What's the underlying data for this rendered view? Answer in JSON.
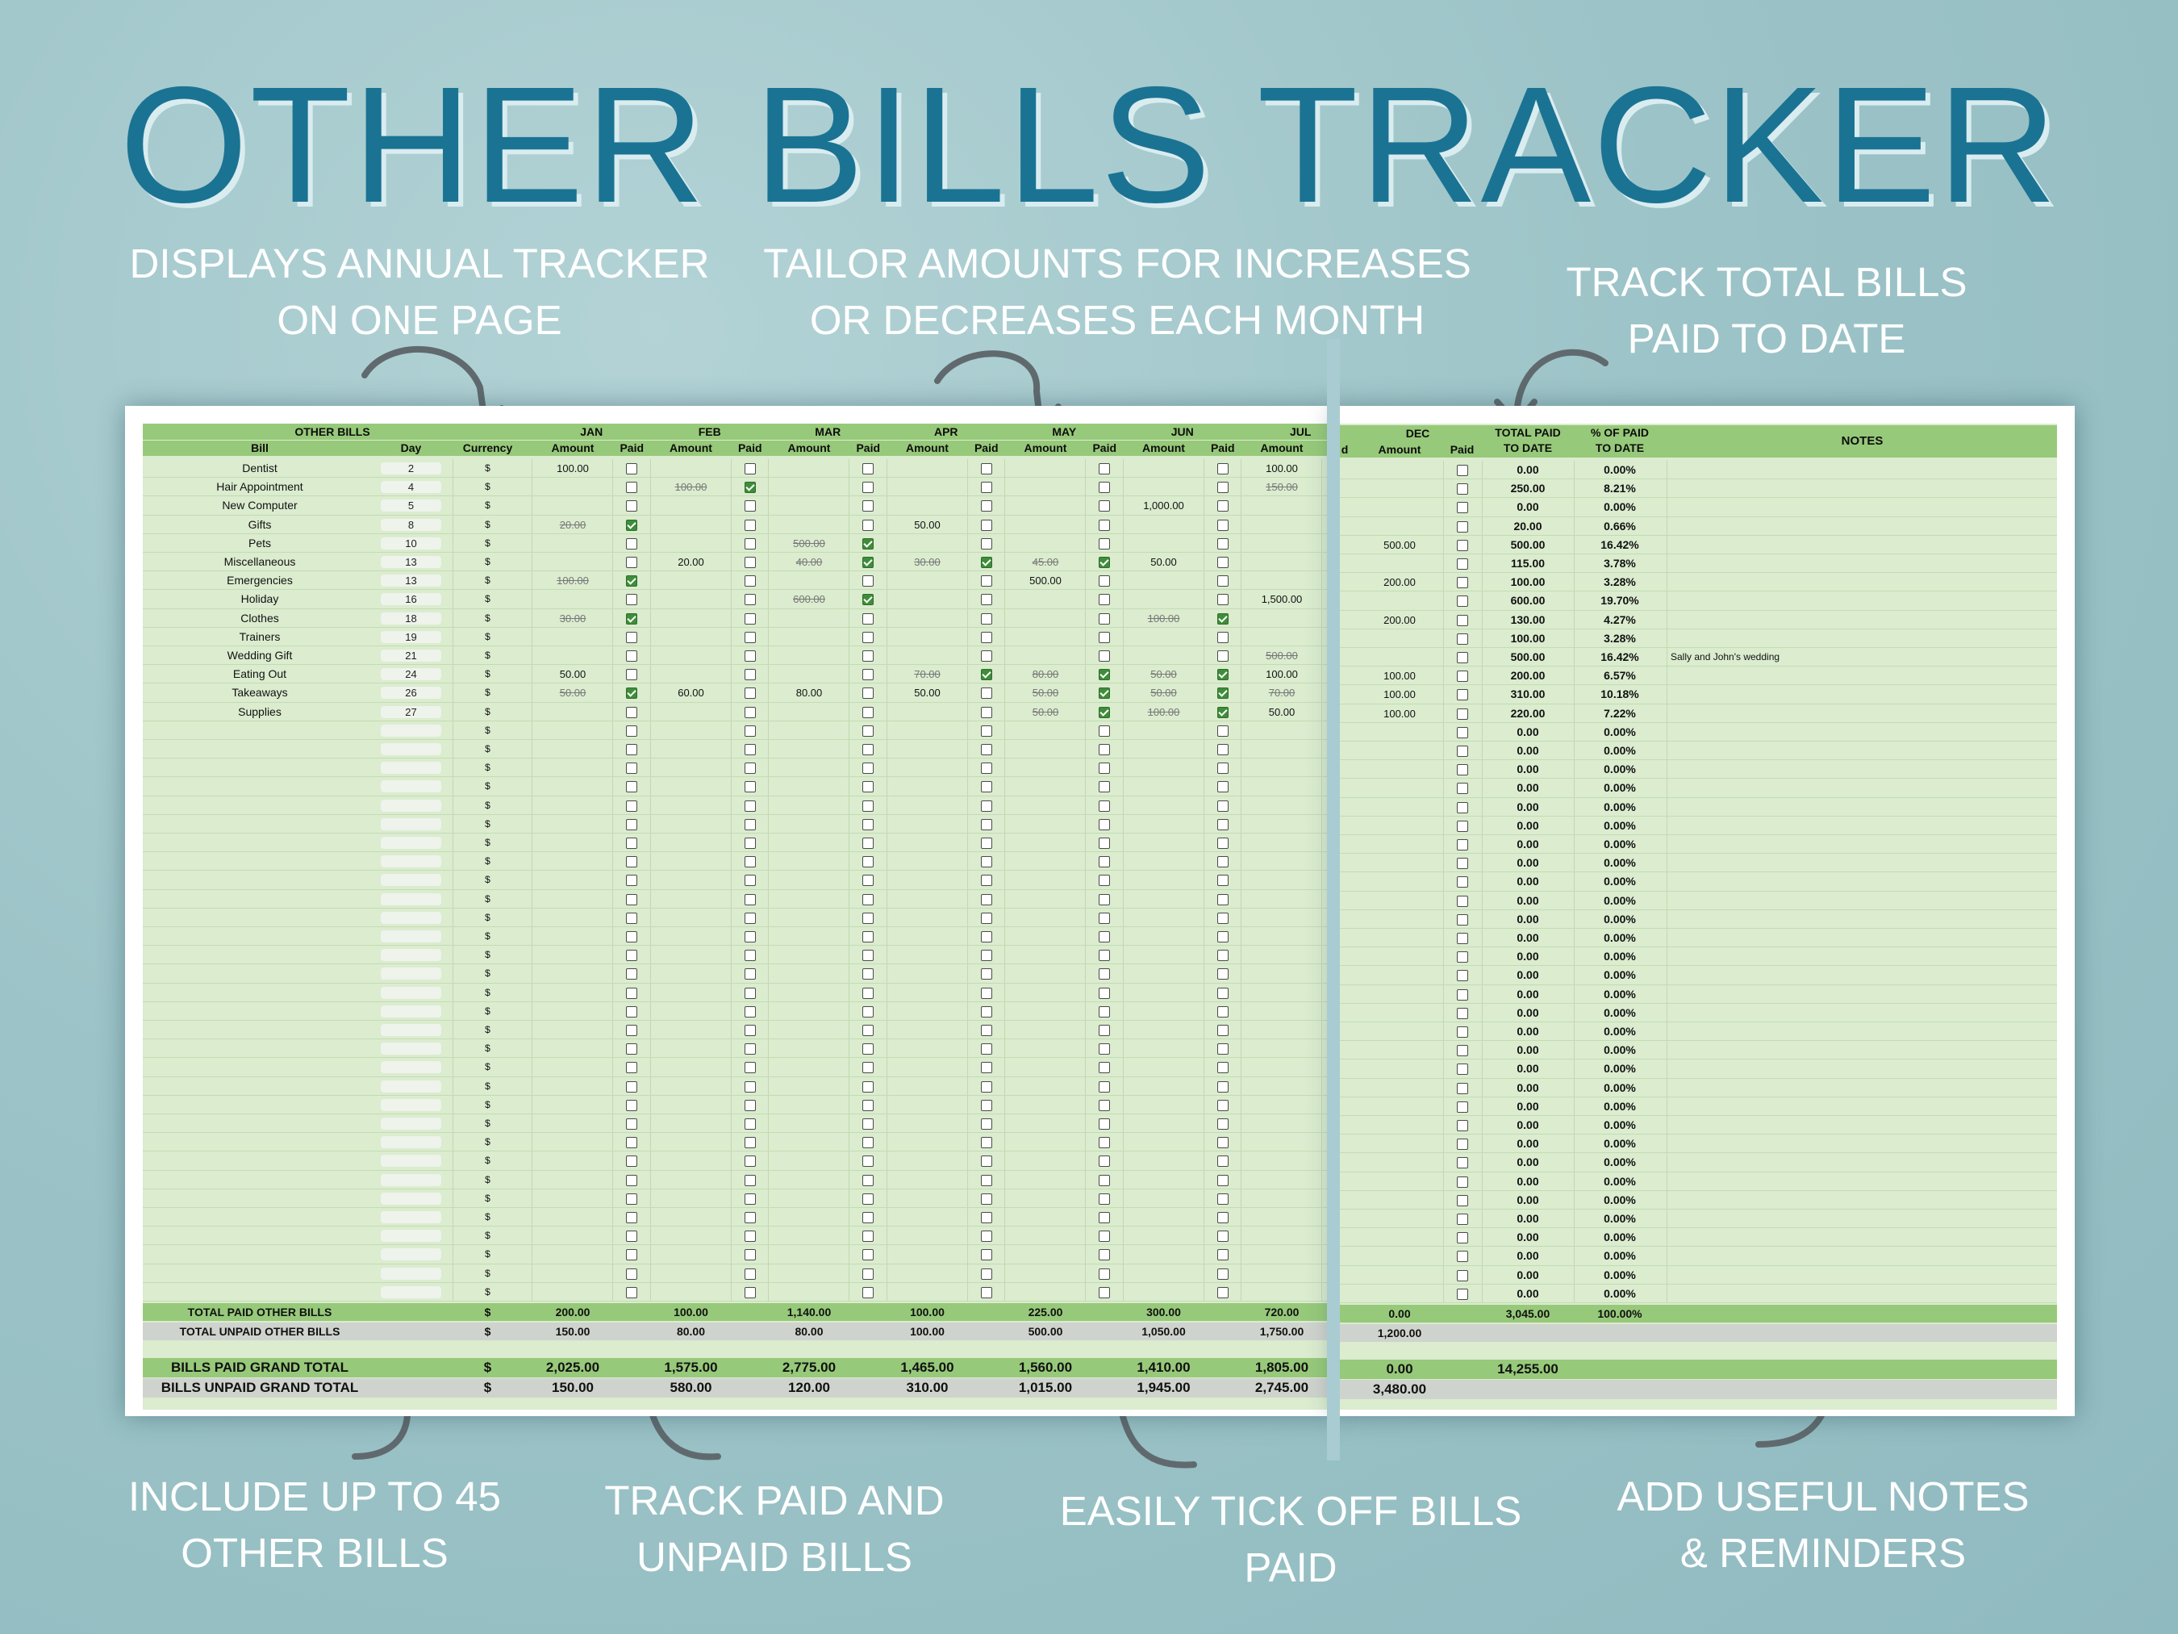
{
  "title": "OTHER BILLS TRACKER",
  "callouts": {
    "annual": [
      "DISPLAYS ANNUAL TRACKER",
      "ON ONE PAGE"
    ],
    "tailor": [
      "TAILOR AMOUNTS FOR INCREASES",
      "OR DECREASES EACH MONTH"
    ],
    "total": [
      "TRACK TOTAL BILLS",
      "PAID TO DATE"
    ],
    "include": [
      "INCLUDE UP TO 45",
      "OTHER BILLS"
    ],
    "paid_unpaid": [
      "TRACK PAID AND",
      "UNPAID BILLS"
    ],
    "tick": [
      "EASILY TICK OFF BILLS",
      "PAID"
    ],
    "notes": [
      "ADD USEFUL NOTES",
      "& REMINDERS"
    ]
  },
  "table": {
    "section_header": "OTHER BILLS",
    "col_bill": "Bill",
    "col_day": "Day",
    "col_currency": "Currency",
    "col_amount": "Amount",
    "col_paid": "Paid",
    "months": [
      "JAN",
      "FEB",
      "MAR",
      "APR",
      "MAY",
      "JUN",
      "JUL"
    ],
    "dec_label": "DEC",
    "right_partial": "d",
    "total_paid_header": [
      "TOTAL PAID",
      "TO DATE"
    ],
    "pct_header": [
      "% OF PAID",
      "TO DATE"
    ],
    "notes_header": "NOTES",
    "currency_symbol": "$",
    "bills": [
      {
        "name": "Dentist",
        "day": "2",
        "m": [
          [
            "100.00",
            0,
            0
          ],
          [
            "",
            0,
            0
          ],
          [
            "",
            0,
            0
          ],
          [
            "",
            0,
            0
          ],
          [
            "",
            0,
            0
          ],
          [
            "",
            0,
            0
          ],
          [
            "100.00",
            0,
            0
          ]
        ],
        "dec": [
          "",
          0
        ],
        "total": "0.00",
        "pct": "0.00%",
        "note": ""
      },
      {
        "name": "Hair Appointment",
        "day": "4",
        "m": [
          [
            "",
            0,
            0
          ],
          [
            "100.00",
            1,
            1
          ],
          [
            "",
            0,
            0
          ],
          [
            "",
            0,
            0
          ],
          [
            "",
            0,
            0
          ],
          [
            "",
            0,
            0
          ],
          [
            "150.00",
            1,
            0
          ]
        ],
        "dec": [
          "",
          0
        ],
        "total": "250.00",
        "pct": "8.21%",
        "note": ""
      },
      {
        "name": "New Computer",
        "day": "5",
        "m": [
          [
            "",
            0,
            0
          ],
          [
            "",
            0,
            0
          ],
          [
            "",
            0,
            0
          ],
          [
            "",
            0,
            0
          ],
          [
            "",
            0,
            0
          ],
          [
            "1,000.00",
            0,
            0
          ],
          [
            "",
            0,
            0
          ]
        ],
        "dec": [
          "",
          0
        ],
        "total": "0.00",
        "pct": "0.00%",
        "note": ""
      },
      {
        "name": "Gifts",
        "day": "8",
        "m": [
          [
            "20.00",
            1,
            1
          ],
          [
            "",
            0,
            0
          ],
          [
            "",
            0,
            0
          ],
          [
            "50.00",
            0,
            0
          ],
          [
            "",
            0,
            0
          ],
          [
            "",
            0,
            0
          ],
          [
            "",
            0,
            0
          ]
        ],
        "dec": [
          "",
          0
        ],
        "total": "20.00",
        "pct": "0.66%",
        "note": ""
      },
      {
        "name": "Pets",
        "day": "10",
        "m": [
          [
            "",
            0,
            0
          ],
          [
            "",
            0,
            0
          ],
          [
            "500.00",
            1,
            1
          ],
          [
            "",
            0,
            0
          ],
          [
            "",
            0,
            0
          ],
          [
            "",
            0,
            0
          ],
          [
            "",
            0,
            0
          ]
        ],
        "dec": [
          "500.00",
          0
        ],
        "total": "500.00",
        "pct": "16.42%",
        "note": ""
      },
      {
        "name": "Miscellaneous",
        "day": "13",
        "m": [
          [
            "",
            0,
            0
          ],
          [
            "20.00",
            0,
            0
          ],
          [
            "40.00",
            1,
            1
          ],
          [
            "30.00",
            1,
            1
          ],
          [
            "45.00",
            1,
            1
          ],
          [
            "50.00",
            0,
            0
          ],
          [
            "",
            0,
            0
          ]
        ],
        "dec": [
          "",
          0
        ],
        "total": "115.00",
        "pct": "3.78%",
        "note": ""
      },
      {
        "name": "Emergencies",
        "day": "13",
        "m": [
          [
            "100.00",
            1,
            1
          ],
          [
            "",
            0,
            0
          ],
          [
            "",
            0,
            0
          ],
          [
            "",
            0,
            0
          ],
          [
            "500.00",
            0,
            0
          ],
          [
            "",
            0,
            0
          ],
          [
            "",
            0,
            0
          ]
        ],
        "dec": [
          "200.00",
          0
        ],
        "total": "100.00",
        "pct": "3.28%",
        "note": ""
      },
      {
        "name": "Holiday",
        "day": "16",
        "m": [
          [
            "",
            0,
            0
          ],
          [
            "",
            0,
            0
          ],
          [
            "600.00",
            1,
            1
          ],
          [
            "",
            0,
            0
          ],
          [
            "",
            0,
            0
          ],
          [
            "",
            0,
            0
          ],
          [
            "1,500.00",
            0,
            0
          ]
        ],
        "dec": [
          "",
          0
        ],
        "total": "600.00",
        "pct": "19.70%",
        "note": ""
      },
      {
        "name": "Clothes",
        "day": "18",
        "m": [
          [
            "30.00",
            1,
            1
          ],
          [
            "",
            0,
            0
          ],
          [
            "",
            0,
            0
          ],
          [
            "",
            0,
            0
          ],
          [
            "",
            0,
            0
          ],
          [
            "100.00",
            1,
            1
          ],
          [
            "",
            0,
            0
          ]
        ],
        "dec": [
          "200.00",
          0
        ],
        "total": "130.00",
        "pct": "4.27%",
        "note": ""
      },
      {
        "name": "Trainers",
        "day": "19",
        "m": [
          [
            "",
            0,
            0
          ],
          [
            "",
            0,
            0
          ],
          [
            "",
            0,
            0
          ],
          [
            "",
            0,
            0
          ],
          [
            "",
            0,
            0
          ],
          [
            "",
            0,
            0
          ],
          [
            "",
            0,
            0
          ]
        ],
        "dec": [
          "",
          0
        ],
        "total": "100.00",
        "pct": "3.28%",
        "note": ""
      },
      {
        "name": "Wedding Gift",
        "day": "21",
        "m": [
          [
            "",
            0,
            0
          ],
          [
            "",
            0,
            0
          ],
          [
            "",
            0,
            0
          ],
          [
            "",
            0,
            0
          ],
          [
            "",
            0,
            0
          ],
          [
            "",
            0,
            0
          ],
          [
            "500.00",
            1,
            0
          ]
        ],
        "dec": [
          "",
          0
        ],
        "total": "500.00",
        "pct": "16.42%",
        "note": "Sally and John's wedding"
      },
      {
        "name": "Eating Out",
        "day": "24",
        "m": [
          [
            "50.00",
            0,
            0
          ],
          [
            "",
            0,
            0
          ],
          [
            "",
            0,
            0
          ],
          [
            "70.00",
            1,
            1
          ],
          [
            "80.00",
            1,
            1
          ],
          [
            "50.00",
            1,
            1
          ],
          [
            "100.00",
            0,
            0
          ]
        ],
        "dec": [
          "100.00",
          0
        ],
        "total": "200.00",
        "pct": "6.57%",
        "note": ""
      },
      {
        "name": "Takeaways",
        "day": "26",
        "m": [
          [
            "50.00",
            1,
            1
          ],
          [
            "60.00",
            0,
            0
          ],
          [
            "80.00",
            0,
            0
          ],
          [
            "50.00",
            0,
            0
          ],
          [
            "50.00",
            1,
            1
          ],
          [
            "50.00",
            1,
            1
          ],
          [
            "70.00",
            1,
            0
          ]
        ],
        "dec": [
          "100.00",
          0
        ],
        "total": "310.00",
        "pct": "10.18%",
        "note": ""
      },
      {
        "name": "Supplies",
        "day": "27",
        "m": [
          [
            "",
            0,
            0
          ],
          [
            "",
            0,
            0
          ],
          [
            "",
            0,
            0
          ],
          [
            "",
            0,
            0
          ],
          [
            "50.00",
            1,
            1
          ],
          [
            "100.00",
            1,
            1
          ],
          [
            "50.00",
            0,
            0
          ]
        ],
        "dec": [
          "100.00",
          0
        ],
        "total": "220.00",
        "pct": "7.22%",
        "note": ""
      }
    ],
    "empty_total": "0.00",
    "empty_pct": "0.00%",
    "total_paid_label": "TOTAL PAID OTHER BILLS",
    "total_unpaid_label": "TOTAL UNPAID OTHER BILLS",
    "total_paid": [
      "200.00",
      "100.00",
      "1,140.00",
      "100.00",
      "225.00",
      "300.00",
      "720.00"
    ],
    "total_unpaid": [
      "150.00",
      "80.00",
      "80.00",
      "100.00",
      "500.00",
      "1,050.00",
      "1,750.00"
    ],
    "dec_total_paid": "0.00",
    "dec_total_unpaid": "1,200.00",
    "total_paid_sum": "3,045.00",
    "total_paid_pct": "100.00%",
    "grand_paid_label": "BILLS PAID GRAND TOTAL",
    "grand_unpaid_label": "BILLS UNPAID GRAND TOTAL",
    "grand_paid": [
      "2,025.00",
      "1,575.00",
      "2,775.00",
      "1,465.00",
      "1,560.00",
      "1,410.00",
      "1,805.00"
    ],
    "grand_unpaid": [
      "150.00",
      "580.00",
      "120.00",
      "310.00",
      "1,015.00",
      "1,945.00",
      "2,745.00"
    ],
    "dec_grand_paid": "0.00",
    "dec_grand_unpaid": "3,480.00",
    "grand_paid_sum": "14,255.00"
  },
  "colors": {
    "title": "#1b7393",
    "header_green": "#97c97a",
    "row_green": "#dbeccf",
    "checkbox_on": "#3f8d3a",
    "unpaid_gray": "#cfd3cd"
  }
}
